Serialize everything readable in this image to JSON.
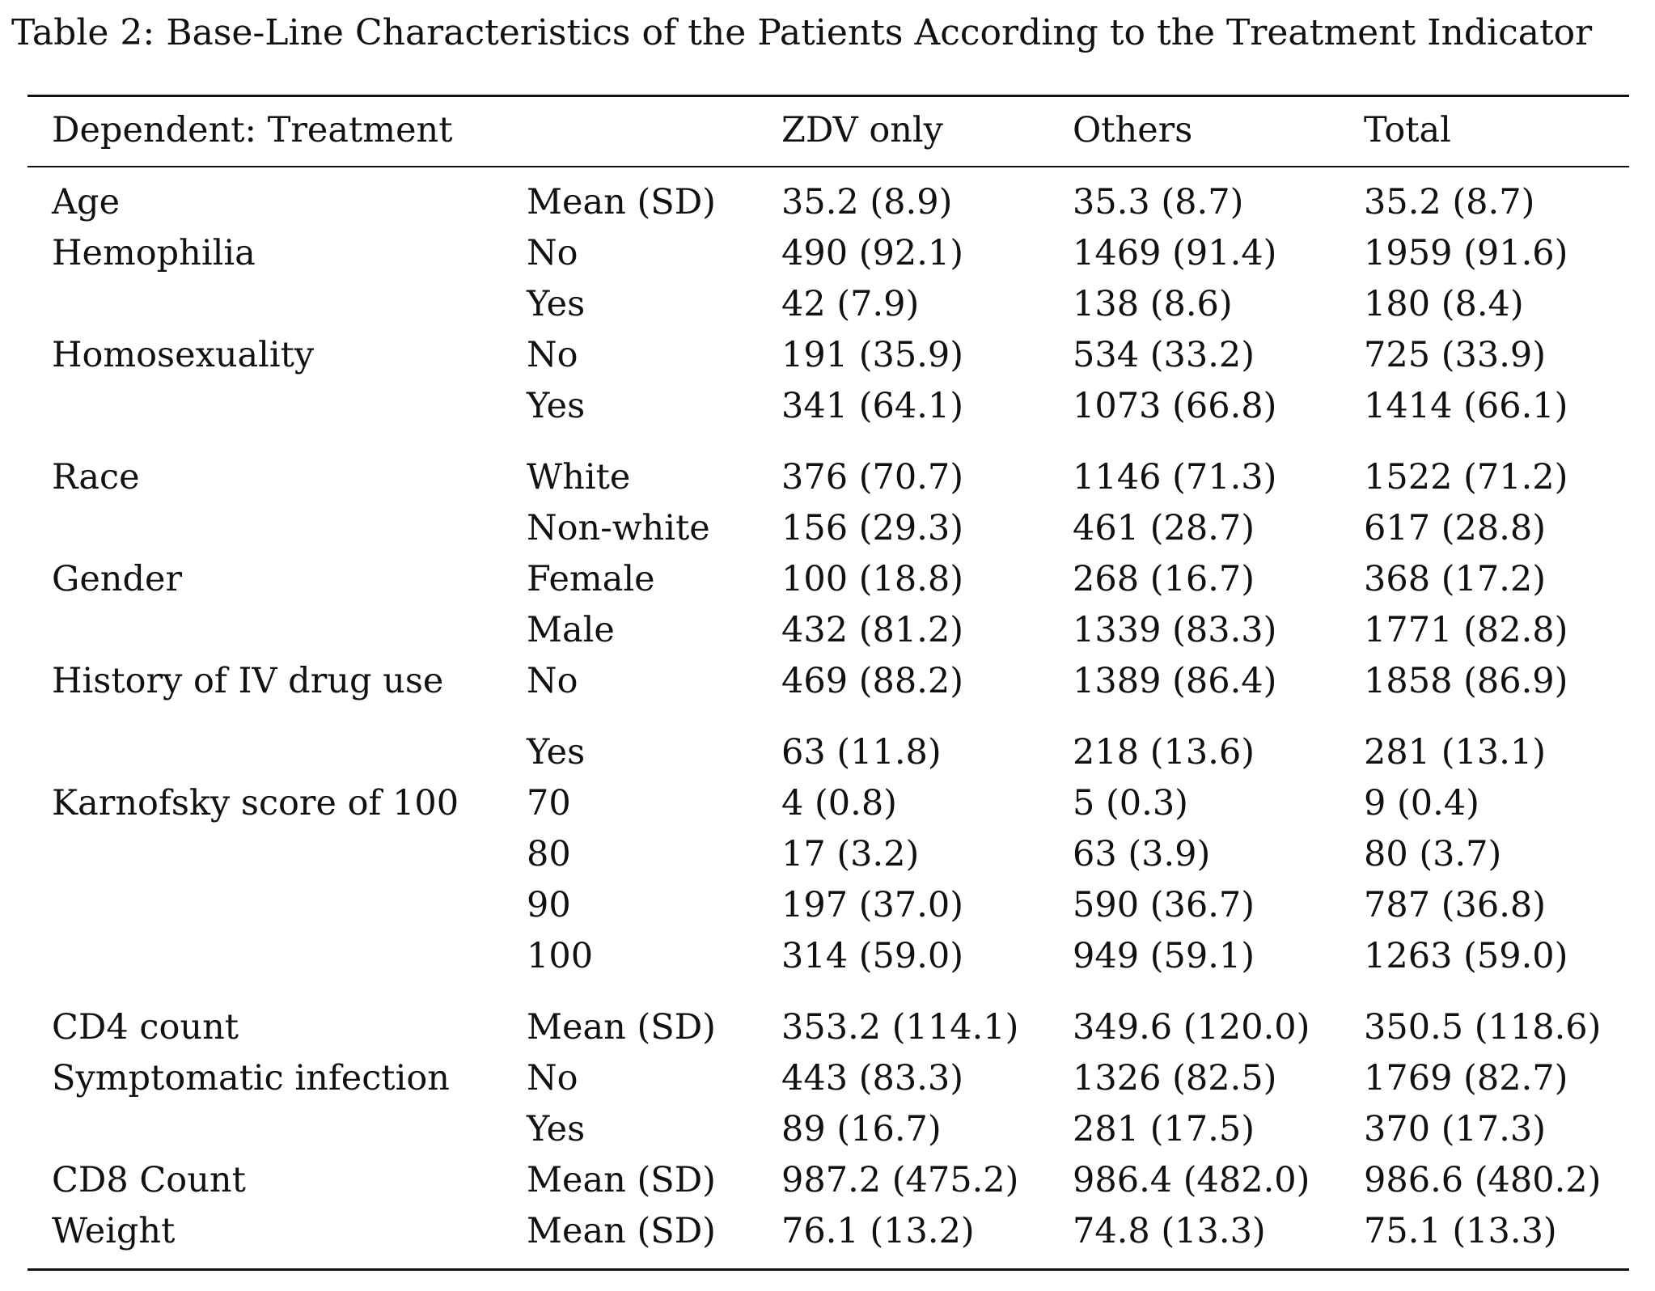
{
  "caption": "Table 2: Base-Line Characteristics of the Patients According to the Treatment Indicator",
  "table": {
    "headers": [
      "Dependent: Treatment",
      "",
      "ZDV only",
      "Others",
      "Total"
    ],
    "rows": [
      [
        "Age",
        "Mean (SD)",
        "35.2 (8.9)",
        "35.3 (8.7)",
        "35.2 (8.7)"
      ],
      [
        "Hemophilia",
        "No",
        "490 (92.1)",
        "1469 (91.4)",
        "1959 (91.6)"
      ],
      [
        "",
        "Yes",
        "42 (7.9)",
        "138 (8.6)",
        "180 (8.4)"
      ],
      [
        "Homosexuality",
        "No",
        "191 (35.9)",
        "534 (33.2)",
        "725 (33.9)"
      ],
      [
        "",
        "Yes",
        "341 (64.1)",
        "1073 (66.8)",
        "1414 (66.1)"
      ],
      [
        "Race",
        "White",
        "376 (70.7)",
        "1146 (71.3)",
        "1522 (71.2)"
      ],
      [
        "",
        "Non-white",
        "156 (29.3)",
        "461 (28.7)",
        "617 (28.8)"
      ],
      [
        "Gender",
        "Female",
        "100 (18.8)",
        "268 (16.7)",
        "368 (17.2)"
      ],
      [
        "",
        "Male",
        "432 (81.2)",
        "1339 (83.3)",
        "1771 (82.8)"
      ],
      [
        "History of IV drug use",
        "No",
        "469 (88.2)",
        "1389 (86.4)",
        "1858 (86.9)"
      ],
      [
        "",
        "Yes",
        "63 (11.8)",
        "218 (13.6)",
        "281 (13.1)"
      ],
      [
        "Karnofsky score of 100",
        "70",
        "4 (0.8)",
        "5 (0.3)",
        "9 (0.4)"
      ],
      [
        "",
        "80",
        "17 (3.2)",
        "63 (3.9)",
        "80 (3.7)"
      ],
      [
        "",
        "90",
        "197 (37.0)",
        "590 (36.7)",
        "787 (36.8)"
      ],
      [
        "",
        "100",
        "314 (59.0)",
        "949 (59.1)",
        "1263 (59.0)"
      ],
      [
        "CD4 count",
        "Mean (SD)",
        "353.2 (114.1)",
        "349.6 (120.0)",
        "350.5 (118.6)"
      ],
      [
        "Symptomatic infection",
        "No",
        "443 (83.3)",
        "1326 (82.5)",
        "1769 (82.7)"
      ],
      [
        "",
        "Yes",
        "89 (16.7)",
        "281 (17.5)",
        "370 (17.3)"
      ],
      [
        "CD8 Count",
        "Mean (SD)",
        "987.2 (475.2)",
        "986.4 (482.0)",
        "986.6 (480.2)"
      ],
      [
        "Weight",
        "Mean (SD)",
        "76.1 (13.2)",
        "74.8 (13.3)",
        "75.1 (13.3)"
      ]
    ]
  }
}
